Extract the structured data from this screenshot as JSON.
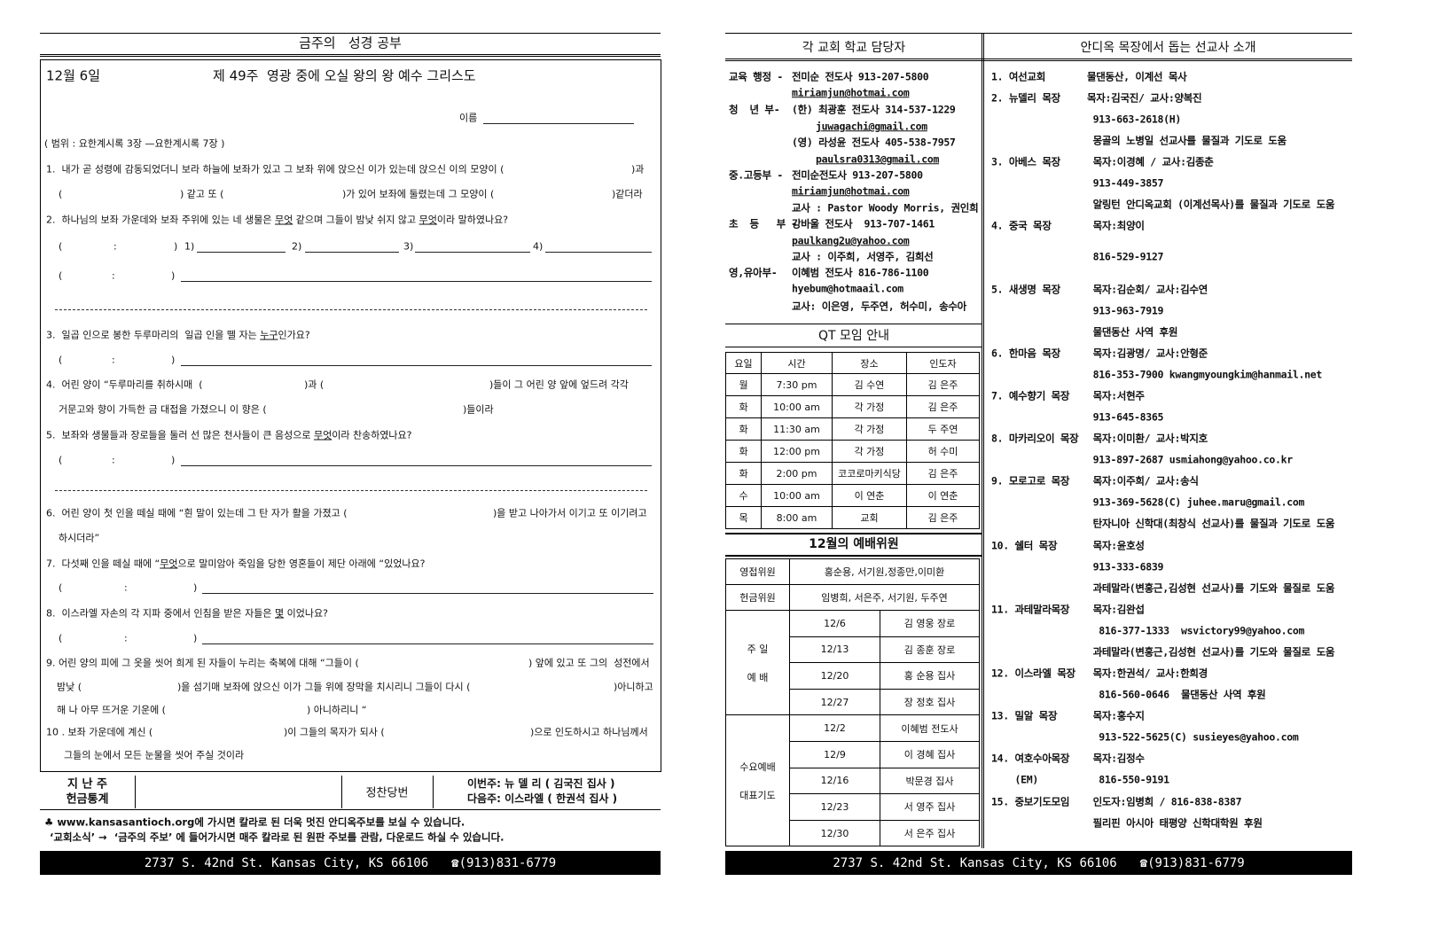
{
  "left": {
    "section_title": "금주의   성경 공부",
    "date": "12월 6일",
    "lesson_title": "제 49주  영광 중에 오실 왕의 왕 예수 그리스도",
    "name_label": "이름",
    "range": "( 범위 : 요한계시록 3장 —요한계시록 7장 )",
    "q1": {
      "a": "1.  내가 곧 성령에 감동되었더니 보라 하늘에 보좌가 있고 그 보좌 위에 앉으신 이가 있는데 앉으신 이의 모양이 (",
      "b": ")과",
      "c": "(",
      "d": ") 같고 또 (",
      "e": ")가 있어 보좌에 둘렸는데 그 모양이 (",
      "f": ")같더라"
    },
    "q2": {
      "a": "2.  하나님의 보좌 가운데와 보좌 주위에 있는 네 생물은 ",
      "u1": "무엇",
      "b": " 같으며 그들이 밤낮 쉬지 않고 ",
      "u2": "무엇",
      "c": "이라 말하였나요?"
    },
    "ref": {
      "open": "(",
      "colon": ":",
      "close": ")"
    },
    "q2_items": [
      "1)",
      "2)",
      "3)",
      "4)"
    ],
    "q3": {
      "a": "3.  일곱 인으로 봉한 두루마리의  일곱 인을 뗄 자는 ",
      "u": "누구",
      "b": "인가요?"
    },
    "q4": {
      "a": "4.  어린 양이 “두루마리를 취하시매  (",
      "b": ")과 (",
      "c": ")들이 그 어린 양 앞에 엎드려 각각",
      "d": "거문고와 향이 가득한 금 대접을 가졌으니 이 향은 (",
      "e": ")들이라"
    },
    "q5": {
      "a": "5.  보좌와 생물들과 장로들을 둘러 선 많은 천사들이 큰 음성으로 ",
      "u": "무엇",
      "b": "이라 찬송하였나요?"
    },
    "q6": {
      "a": "6.  어린 양이 첫 인을 떼실 때에 “흰 말이 있는데 그 탄 자가 활을 가졌고 (",
      "b": ")을 받고 나아가서 이기고 또 이기려고",
      "c": "하시더라”"
    },
    "q7": {
      "a": "7.  다섯째 인을 떼실 때에 “",
      "u": "무엇",
      "b": "으로 말미암아 죽임을 당한 영혼들이 제단 아래에 “있었나요?"
    },
    "q8": {
      "a": "8.  이스라엘 자손의 각 지파 중에서 인침을 받은 자들은 ",
      "u": "몇",
      "b": " 이었나요?"
    },
    "q9": {
      "a": "9. 어린 양의 피에 그 옷을 씻어 희게 된 자들이 누리는 축복에 대해 “그들이 (",
      "b": ") 앞에 있고 또 그의  성전에서",
      "c": "밤낮 (",
      "d": ")을 섬기매 보좌에 앉으신 이가 그들 위에 장막을 치시리니 그들이 다시 (",
      "e": ")아니하고",
      "f": "해 나 아무 뜨거운 기운에 (",
      "g": ") 아니하리니 “"
    },
    "q10": {
      "a": "10 . 보좌 가운데에 계신 (",
      "b": ")이 그들의 목자가 되사 (",
      "c": ")으로 인도하시고 하나님께서",
      "d": "그들의 눈에서 모든 눈물을 씻어 주실 것이라"
    },
    "offering": {
      "label1": "지 난 주",
      "label2": "헌금통계",
      "duty_label": "정찬당번",
      "this_week": "이번주: 뉴 델 리 ( 김국진 집사 )",
      "next_week": "다음주: 이스라엘 ( 한권석 집사 )"
    },
    "note1": "♣ www.kansasantioch.org에 가시면 칼라로 된 더욱 멋진 안디옥주보를 보실 수 있습니다.",
    "note2": "‘교회소식’ →  ‘금주의 주보’ 에 들어가시면 매주 칼라로 된 원판 주보를 관람, 다운로드 하실 수 있습니다.",
    "address": "2737 S. 42nd St. Kansas City, KS 66106",
    "phone": "☎(913)831-6779"
  },
  "right": {
    "staff_title": "각 교회 학교 담당자",
    "mission_title": "안디옥 목장에서 돕는 선교사 소개",
    "staff": [
      {
        "label": "교육 행정 -",
        "text": "전미순 전도사 913-207-5800"
      },
      {
        "label": "",
        "text": "miriamjun@hotmai.com",
        "email": true
      },
      {
        "label": "청  년 부-",
        "text": "(한) 최광훈 전도사 314-537-1229"
      },
      {
        "label": "",
        "text": "juwagachi@gmail.com",
        "email": true,
        "indent": true
      },
      {
        "label": "",
        "text": "(영) 라성윤 전도사 405-538-7957"
      },
      {
        "label": "",
        "text": "paulsra0313@gmail.com",
        "email": true,
        "indent": true
      },
      {
        "label": "중.고등부 -",
        "text": "전미순전도사 913-207-5800"
      },
      {
        "label": "",
        "text": "miriamjun@hotmai.com",
        "email": true
      },
      {
        "label": "",
        "text": "교사 : Pastor Woody Morris, 권인희"
      },
      {
        "label": "초  등   부 -",
        "text": "강바울 전도사  913-707-1461"
      },
      {
        "label": "",
        "text": "paulkang2u@yahoo.com",
        "email": true
      },
      {
        "label": "",
        "text": "교사 : 이주희, 서영주, 김희선"
      },
      {
        "label": "영,유아부-",
        "text": "이혜범 전도사 816-786-1100"
      },
      {
        "label": "",
        "text": "hyebum@hotmaail.com"
      },
      {
        "label": "",
        "text": "교사: 이은영, 두주연, 허수미, 송수아"
      }
    ],
    "qt": {
      "title": "QT 모임 안내",
      "headers": [
        "요일",
        "시간",
        "장소",
        "인도자"
      ],
      "rows": [
        [
          "월",
          "7:30 pm",
          "김 수연",
          "김 은주"
        ],
        [
          "화",
          "10:00 am",
          "각 가정",
          "김 은주"
        ],
        [
          "화",
          "11:30 am",
          "각 가정",
          "두 주연"
        ],
        [
          "화",
          "12:00 pm",
          "각 가정",
          "허 수미"
        ],
        [
          "화",
          "2:00 pm",
          "코코로마키식당",
          "김 은주"
        ],
        [
          "수",
          "10:00 am",
          "이 연춘",
          "이 연춘"
        ],
        [
          "목",
          "8:00 am",
          "교회",
          "김 은주"
        ]
      ]
    },
    "worship": {
      "title": "12월의 예배위원",
      "usher_label": "영접위원",
      "ushers": "홍순용, 서기원,정종만,이미환",
      "offering_label": "헌금위원",
      "offering": "임병희, 서은주, 서기원, 두주연",
      "sunday_label1": "주 일",
      "sunday_label2": "예 배",
      "sunday": [
        [
          "12/6",
          "김 영웅 장로"
        ],
        [
          "12/13",
          "김 종훈 장로"
        ],
        [
          "12/20",
          "홍 순용 집사"
        ],
        [
          "12/27",
          "장 정호 집사"
        ]
      ],
      "wed_label1": "수요예배",
      "wed_label2": "대표기도",
      "wednesday": [
        [
          "12/2",
          "이혜범 전도사"
        ],
        [
          "12/9",
          "이 경혜 집사"
        ],
        [
          "12/16",
          "박문경 집사"
        ],
        [
          "12/23",
          "서 영주 집사"
        ],
        [
          "12/30",
          "서 은주 집사"
        ]
      ]
    },
    "missions": [
      {
        "label": "1. 여선교회",
        "text": "물댄동산, 이계선 목사"
      },
      {
        "label": "2. 뉴델리 목장",
        "text": "목자:김국진/ 교사:양복진"
      },
      {
        "label": "",
        "text": " 913-663-2618(H)"
      },
      {
        "label": "",
        "text": " 몽골의 노병일 선교사를 물질과 기도로 도움"
      },
      {
        "label": "3. 아베스 목장",
        "text": " 목자:이경혜 / 교사:김종춘"
      },
      {
        "label": "",
        "text": " 913-449-3857"
      },
      {
        "label": "",
        "text": " 알링턴 안디옥교회 (이계선목사)를 물질과 기도로 도움"
      },
      {
        "label": "4. 중국 목장",
        "text": " 목자:최양이"
      },
      {
        "label": "",
        "text": " 816-529-9127"
      },
      {
        "label": "5. 새생명 목장",
        "text": " 목자:김순회/ 교사:김수연"
      },
      {
        "label": "",
        "text": " 913-963-7919"
      },
      {
        "label": "",
        "text": " 물댄동산 사역 후원"
      },
      {
        "label": "6. 한마음 목장",
        "text": " 목자:김광명/ 교사:안형준"
      },
      {
        "label": "",
        "text": " 816-353-7900 kwangmyoungkim@hanmail.net"
      },
      {
        "label": "7. 예수향기 목장",
        "text": " 목자:서현주"
      },
      {
        "label": "",
        "text": " 913-645-8365"
      },
      {
        "label": "8. 마카리오이 목장",
        "text": " 목자:이미환/ 교사:박지호"
      },
      {
        "label": "",
        "text": " 913-897-2687 usmiahong@yahoo.co.kr"
      },
      {
        "label": "9. 모로고로 목장",
        "text": " 목자:이주희/ 교사:송식"
      },
      {
        "label": "",
        "text": " 913-369-5628(C) juhee.maru@gmail.com"
      },
      {
        "label": "",
        "text": " 탄자니아 신학대(최창식 선교사)를 물질과 기도로 도움"
      },
      {
        "label": "10. 쉘터 목장",
        "text": " 목자:윤호성"
      },
      {
        "label": "",
        "text": " 913-333-6839"
      },
      {
        "label": "",
        "text": " 과테말라(변홍근,김성현 선교사)를 기도와 물질로 도움"
      },
      {
        "label": "11. 과테말라목장",
        "text": " 목자:김완섭"
      },
      {
        "label": "",
        "text": "  816-377-1333  wsvictory99@yahoo.com"
      },
      {
        "label": "",
        "text": " 과테말라(변홍근,김성현 선교사)를 기도와 물질로 도움"
      },
      {
        "label": "12. 이스라엘 목장",
        "text": " 목자:한권석/ 교사:한희경"
      },
      {
        "label": "",
        "text": "  816-560-0646  물댄동산 사역 후원"
      },
      {
        "label": "13. 밀알 목장",
        "text": " 목자:홍수지"
      },
      {
        "label": "",
        "text": "  913-522-5625(C) susieyes@yahoo.com"
      },
      {
        "label": "14. 여호수아목장",
        "text": " 목자:김정수"
      },
      {
        "label": "    (EM)",
        "text": "  816-550-9191"
      },
      {
        "label": "15. 중보기도모임",
        "text": " 인도자:임병희 / 816-838-8387"
      },
      {
        "label": "",
        "text": " 필리핀 아시아 태평양 신학대학원 후원"
      }
    ],
    "address": "2737 S. 42nd St. Kansas City, KS 66106",
    "phone": "☎(913)831-6779"
  }
}
